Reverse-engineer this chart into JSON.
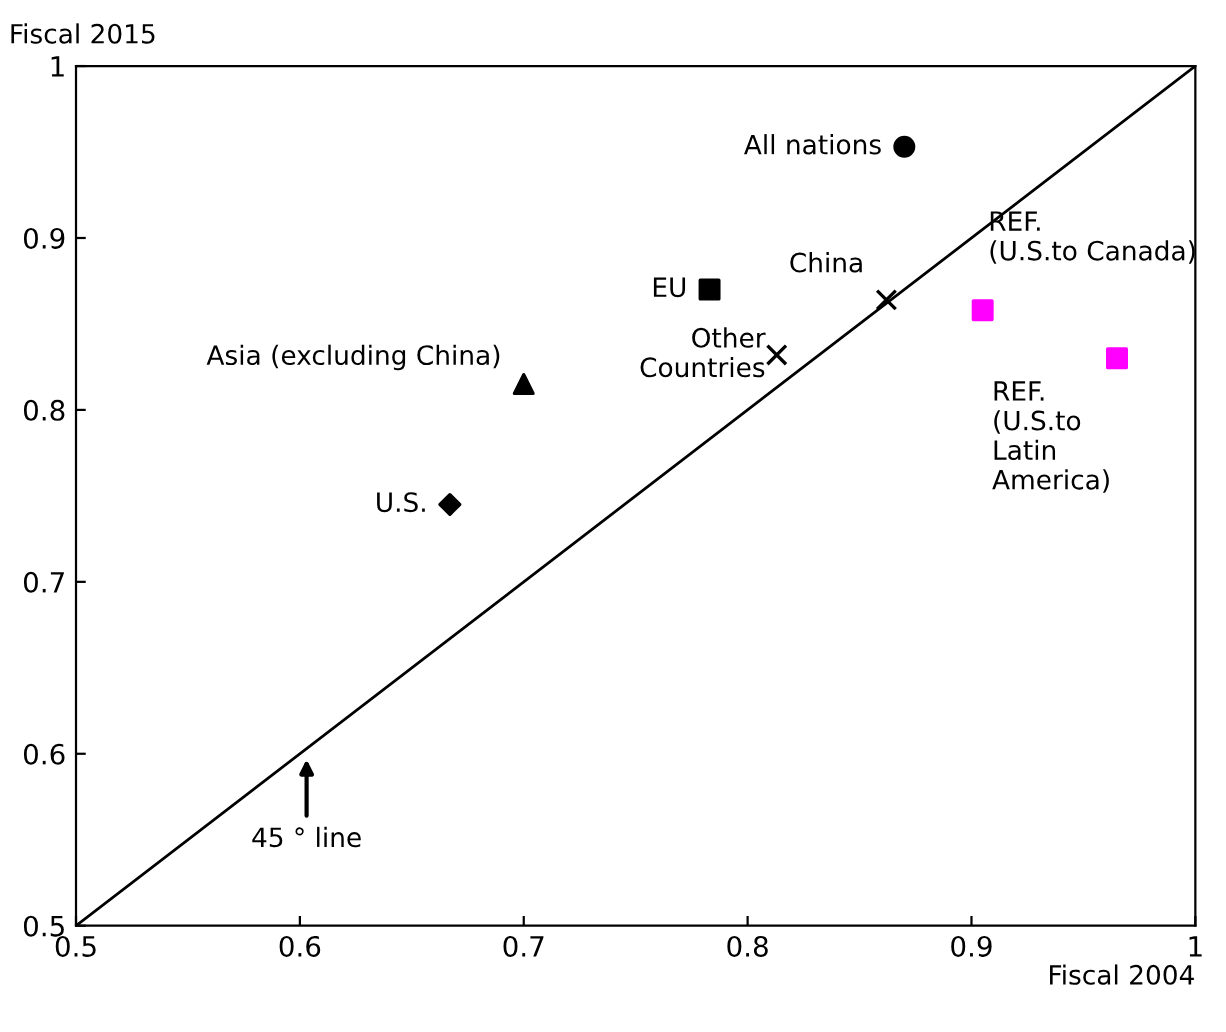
{
  "chart_data": {
    "type": "scatter",
    "xlabel": "Fiscal 2004",
    "ylabel": "Fiscal 2015",
    "xlim": [
      0.5,
      1
    ],
    "ylim": [
      0.5,
      1
    ],
    "xticks": [
      0.5,
      0.6,
      0.7,
      0.8,
      0.9,
      1
    ],
    "yticks": [
      0.5,
      0.6,
      0.7,
      0.8,
      0.9,
      1
    ],
    "grid": false,
    "legend": false,
    "series": [
      {
        "name": "All nations",
        "color": "#000000",
        "marker": "circle",
        "x": [
          0.87
        ],
        "values": [
          0.953
        ]
      },
      {
        "name": "EU",
        "color": "#000000",
        "marker": "square",
        "x": [
          0.783
        ],
        "values": [
          0.87
        ]
      },
      {
        "name": "China",
        "color": "#000000",
        "marker": "cross",
        "x": [
          0.862
        ],
        "values": [
          0.864
        ]
      },
      {
        "name": "Other\nCountries",
        "color": "#000000",
        "marker": "cross",
        "x": [
          0.813
        ],
        "values": [
          0.832
        ]
      },
      {
        "name": "Asia (excluding China)",
        "color": "#000000",
        "marker": "triangle",
        "x": [
          0.7
        ],
        "values": [
          0.815
        ]
      },
      {
        "name": "U.S.",
        "color": "#000000",
        "marker": "diamond",
        "x": [
          0.667
        ],
        "values": [
          0.745
        ]
      },
      {
        "name": "REF.\n(U.S.to Canada)",
        "color": "#ff00ff",
        "marker": "square",
        "x": [
          0.905
        ],
        "values": [
          0.858
        ]
      },
      {
        "name": "REF.\n(U.S.to\nLatin\nAmerica)",
        "color": "#ff00ff",
        "marker": "square",
        "x": [
          0.965
        ],
        "values": [
          0.83
        ]
      },
      {
        "type": "line",
        "color": "#000000",
        "marker": "none",
        "line_style": "solid",
        "x": [
          0.5,
          1
        ],
        "values": [
          0.5,
          1
        ]
      }
    ],
    "annotations": [
      "45 ° line"
    ]
  }
}
